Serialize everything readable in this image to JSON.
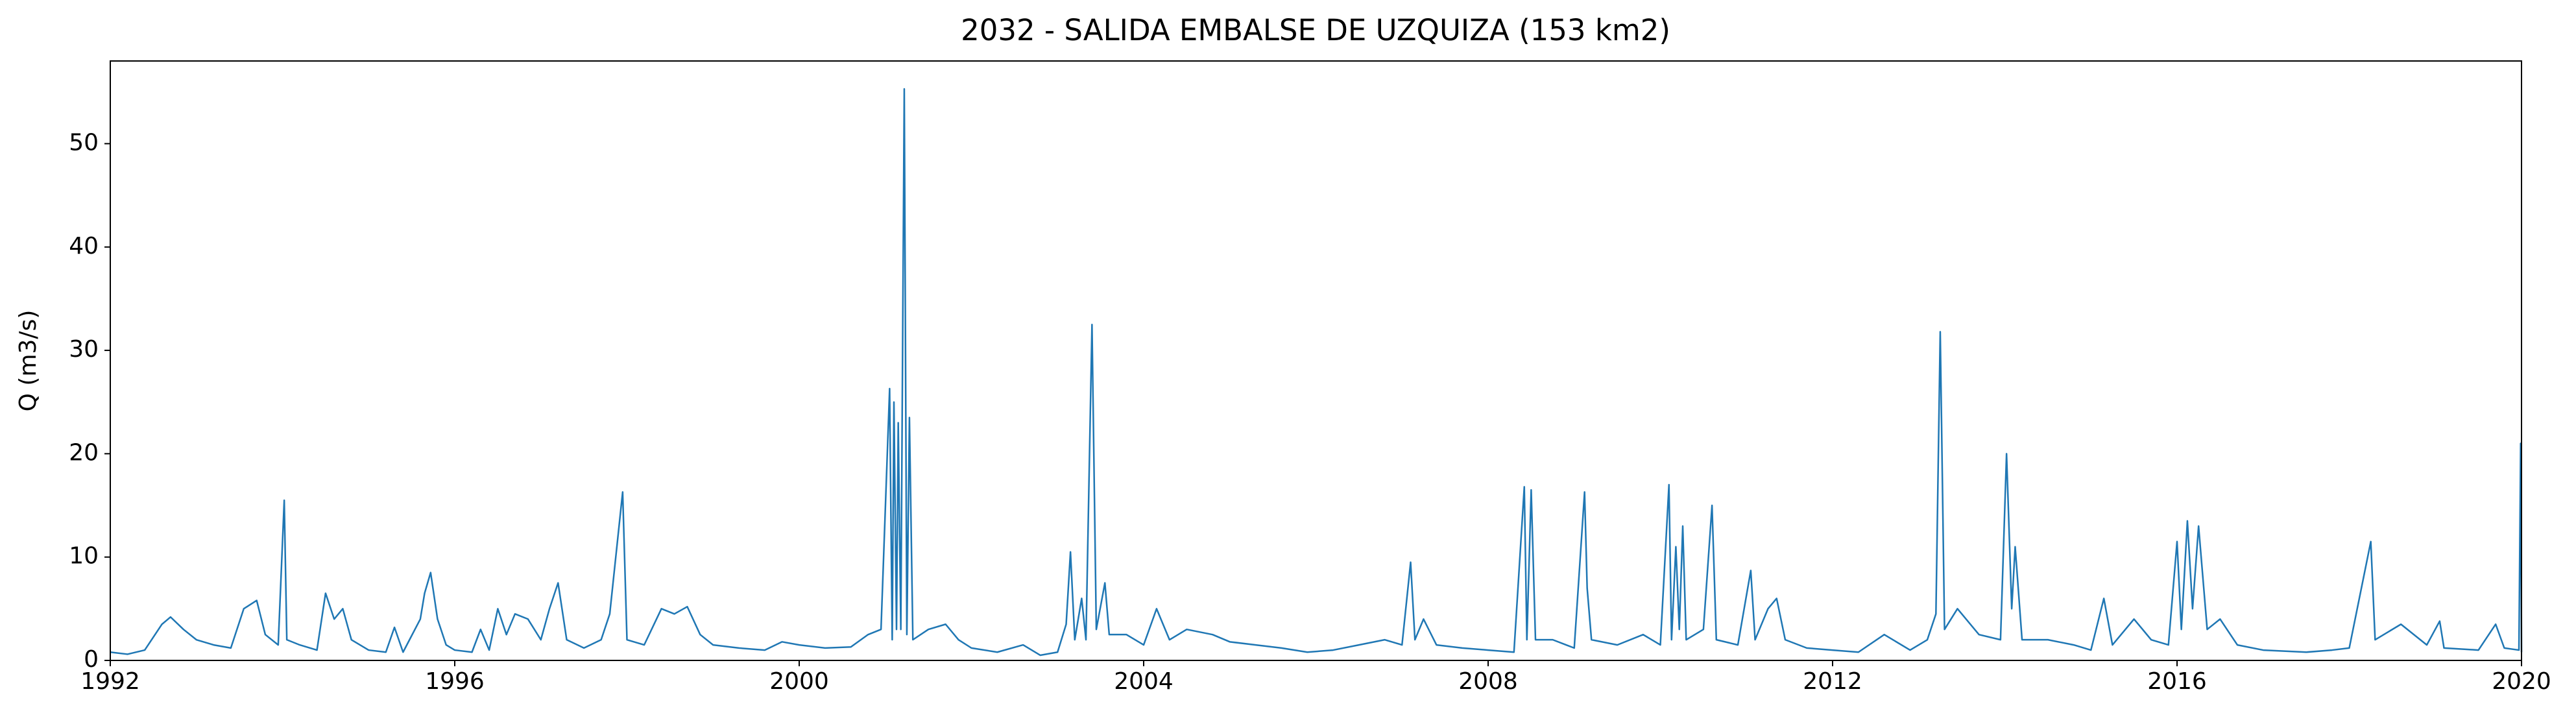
{
  "chart_data": {
    "type": "line",
    "title": "2032 - SALIDA EMBALSE DE UZQUIZA (153 km2)",
    "ylabel": "Q (m3/s)",
    "xlim": [
      1992,
      2020
    ],
    "xticks": [
      1992,
      1996,
      2000,
      2004,
      2008,
      2012,
      2016,
      2020
    ],
    "ylim": [
      0,
      58
    ],
    "yticks": [
      0,
      10,
      20,
      30,
      40,
      50
    ],
    "series": [
      {
        "color": "#1f77b4",
        "x": [
          1992.0,
          1992.2,
          1992.4,
          1992.6,
          1992.7,
          1992.85,
          1993.0,
          1993.2,
          1993.4,
          1993.55,
          1993.7,
          1993.8,
          1993.95,
          1994.02,
          1994.05,
          1994.2,
          1994.4,
          1994.5,
          1994.6,
          1994.7,
          1994.8,
          1995.0,
          1995.2,
          1995.3,
          1995.4,
          1995.6,
          1995.65,
          1995.72,
          1995.8,
          1995.9,
          1996.0,
          1996.2,
          1996.3,
          1996.4,
          1996.5,
          1996.6,
          1996.7,
          1996.85,
          1997.0,
          1997.1,
          1997.2,
          1997.3,
          1997.5,
          1997.7,
          1997.8,
          1997.95,
          1998.0,
          1998.2,
          1998.4,
          1998.55,
          1998.7,
          1998.85,
          1999.0,
          1999.3,
          1999.6,
          1999.8,
          2000.0,
          2000.3,
          2000.6,
          2000.8,
          2000.95,
          2001.05,
          2001.08,
          2001.1,
          2001.13,
          2001.15,
          2001.18,
          2001.22,
          2001.25,
          2001.28,
          2001.32,
          2001.5,
          2001.7,
          2001.85,
          2002.0,
          2002.3,
          2002.6,
          2002.8,
          2003.0,
          2003.1,
          2003.15,
          2003.2,
          2003.28,
          2003.33,
          2003.4,
          2003.45,
          2003.55,
          2003.6,
          2003.8,
          2004.0,
          2004.15,
          2004.3,
          2004.5,
          2004.8,
          2005.0,
          2005.3,
          2005.6,
          2005.9,
          2006.2,
          2006.5,
          2006.8,
          2007.0,
          2007.1,
          2007.15,
          2007.25,
          2007.4,
          2007.7,
          2008.0,
          2008.3,
          2008.42,
          2008.45,
          2008.5,
          2008.55,
          2008.75,
          2009.0,
          2009.12,
          2009.15,
          2009.2,
          2009.5,
          2009.8,
          2010.0,
          2010.1,
          2010.13,
          2010.18,
          2010.22,
          2010.26,
          2010.3,
          2010.5,
          2010.6,
          2010.65,
          2010.9,
          2011.05,
          2011.1,
          2011.25,
          2011.35,
          2011.45,
          2011.7,
          2012.0,
          2012.3,
          2012.6,
          2012.9,
          2013.1,
          2013.2,
          2013.25,
          2013.3,
          2013.45,
          2013.7,
          2013.95,
          2014.02,
          2014.08,
          2014.12,
          2014.2,
          2014.5,
          2014.8,
          2015.0,
          2015.15,
          2015.25,
          2015.5,
          2015.7,
          2015.9,
          2016.0,
          2016.05,
          2016.12,
          2016.18,
          2016.25,
          2016.35,
          2016.5,
          2016.7,
          2017.0,
          2017.5,
          2017.8,
          2018.0,
          2018.25,
          2018.3,
          2018.6,
          2018.9,
          2019.05,
          2019.1,
          2019.5,
          2019.7,
          2019.8,
          2019.97,
          2019.99,
          2020.0
        ],
        "values": [
          0.8,
          0.6,
          1.0,
          3.5,
          4.2,
          3.0,
          2.0,
          1.5,
          1.2,
          5.0,
          5.8,
          2.5,
          1.5,
          15.5,
          2.0,
          1.5,
          1.0,
          6.5,
          4.0,
          5.0,
          2.0,
          1.0,
          0.8,
          3.2,
          0.8,
          4.0,
          6.5,
          8.5,
          4.0,
          1.5,
          1.0,
          0.8,
          3.0,
          1.0,
          5.0,
          2.5,
          4.5,
          4.0,
          2.0,
          5.0,
          7.5,
          2.0,
          1.2,
          2.0,
          4.5,
          16.3,
          2.0,
          1.5,
          5.0,
          4.5,
          5.2,
          2.5,
          1.5,
          1.2,
          1.0,
          1.8,
          1.5,
          1.2,
          1.3,
          2.5,
          3.0,
          26.3,
          2.0,
          25.0,
          3.0,
          23.0,
          3.0,
          55.3,
          2.5,
          23.5,
          2.0,
          3.0,
          3.5,
          2.0,
          1.2,
          0.8,
          1.5,
          0.5,
          0.8,
          3.5,
          10.5,
          2.0,
          6.0,
          2.0,
          32.5,
          3.0,
          7.5,
          2.5,
          2.5,
          1.5,
          5.0,
          2.0,
          3.0,
          2.5,
          1.8,
          1.5,
          1.2,
          0.8,
          1.0,
          1.5,
          2.0,
          1.5,
          9.5,
          2.0,
          4.0,
          1.5,
          1.2,
          1.0,
          0.8,
          16.8,
          2.0,
          16.5,
          2.0,
          2.0,
          1.2,
          16.3,
          7.0,
          2.0,
          1.5,
          2.5,
          1.5,
          17.0,
          2.0,
          11.0,
          3.0,
          13.0,
          2.0,
          3.0,
          15.0,
          2.0,
          1.5,
          8.7,
          2.0,
          5.0,
          6.0,
          2.0,
          1.2,
          1.0,
          0.8,
          2.5,
          1.0,
          2.0,
          4.5,
          31.8,
          3.0,
          5.0,
          2.5,
          2.0,
          20.0,
          5.0,
          11.0,
          2.0,
          2.0,
          1.5,
          1.0,
          6.0,
          1.5,
          4.0,
          2.0,
          1.5,
          11.5,
          3.0,
          13.5,
          5.0,
          13.0,
          3.0,
          4.0,
          1.5,
          1.0,
          0.8,
          1.0,
          1.2,
          11.5,
          2.0,
          3.5,
          1.5,
          3.8,
          1.2,
          1.0,
          3.5,
          1.2,
          1.0,
          21.0,
          0.8
        ]
      }
    ]
  }
}
